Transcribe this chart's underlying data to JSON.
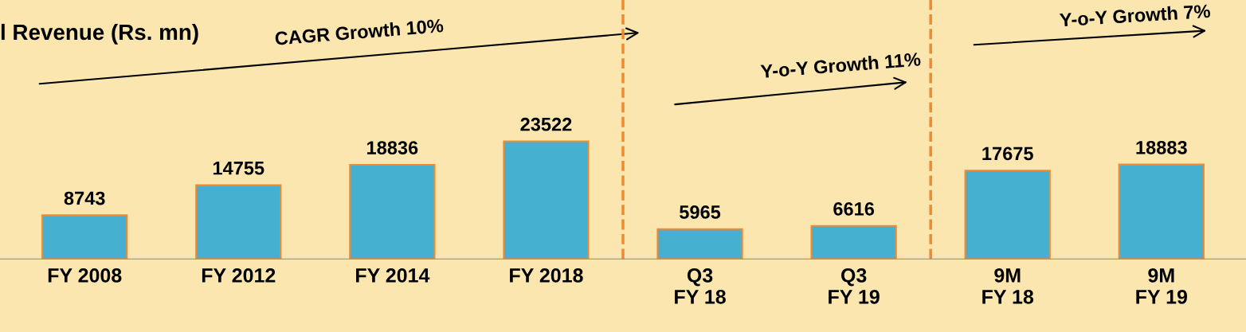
{
  "chart_data": {
    "type": "bar",
    "title": "l Revenue (Rs. mn)",
    "categories": [
      "FY 2008",
      "FY 2012",
      "FY 2014",
      "FY 2018",
      "Q3\nFY 18",
      "Q3\nFY 19",
      "9M\nFY 18",
      "9M\nFY 19"
    ],
    "values": [
      8743,
      14755,
      18836,
      23522,
      5965,
      6616,
      17675,
      18883
    ],
    "color": "#45b0cf",
    "data_labels": true,
    "tick_labels": "x",
    "grid": false,
    "legend": false,
    "annotations": [
      "CAGR Growth 10%",
      "Y-o-Y Growth 11%",
      "Y-o-Y Growth 7%"
    ]
  }
}
